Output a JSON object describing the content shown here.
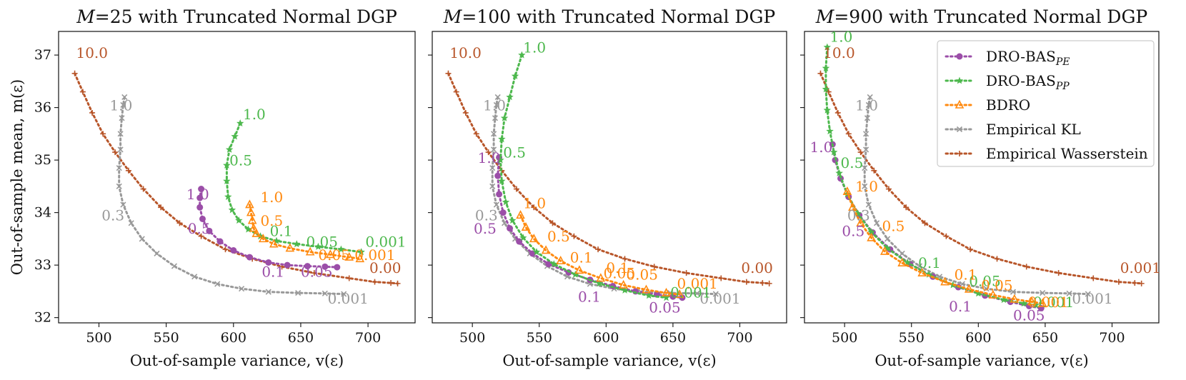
{
  "colors": {
    "DRO-BAS_PE": "#9b4ea8",
    "DRO-BAS_PP": "#4db84d",
    "BDRO": "#ff8a10",
    "Empirical KL": "#999999",
    "Empirical Wasserstein": "#b8562a"
  },
  "legend": [
    {
      "key": "DRO-BAS_PE",
      "label": "DRO-BAS",
      "sub": "PE",
      "marker": "circle"
    },
    {
      "key": "DRO-BAS_PP",
      "label": "DRO-BAS",
      "sub": "PP",
      "marker": "star"
    },
    {
      "key": "BDRO",
      "label": "BDRO",
      "sub": "",
      "marker": "triangle"
    },
    {
      "key": "Empirical KL",
      "label": "Empirical KL",
      "sub": "",
      "marker": "x"
    },
    {
      "key": "Empirical Wasserstein",
      "label": "Empirical Wasserstein",
      "sub": "",
      "marker": "plus"
    }
  ],
  "chart_data": [
    {
      "type": "line",
      "title_math": "M",
      "title_rest": "=25 with Truncated Normal DGP",
      "xlabel": "Out-of-sample variance, v(ε)",
      "ylabel": "Out-of-sample mean, m(ε)",
      "xlim": [
        470,
        735
      ],
      "ylim": [
        31.9,
        37.45
      ],
      "xticks": [
        500,
        550,
        600,
        650,
        700
      ],
      "yticks": [
        32,
        33,
        34,
        35,
        36,
        37
      ],
      "series": [
        {
          "name": "Empirical Wasserstein",
          "x": [
            482,
            488,
            495,
            503,
            512,
            522,
            533,
            546,
            560,
            576,
            594,
            614,
            636,
            660,
            686,
            705,
            717,
            722
          ],
          "y": [
            36.65,
            36.3,
            35.9,
            35.5,
            35.15,
            34.8,
            34.45,
            34.1,
            33.8,
            33.55,
            33.3,
            33.12,
            32.97,
            32.85,
            32.75,
            32.68,
            32.66,
            32.65
          ]
        },
        {
          "name": "Empirical KL",
          "x": [
            519,
            518,
            517,
            516,
            516,
            515,
            515,
            518,
            524,
            532,
            543,
            556,
            571,
            588,
            606,
            626,
            648,
            668,
            682
          ],
          "y": [
            36.2,
            36.05,
            35.8,
            35.5,
            35.2,
            34.85,
            34.5,
            34.15,
            33.8,
            33.5,
            33.22,
            32.98,
            32.78,
            32.64,
            32.55,
            32.49,
            32.47,
            32.46,
            32.45
          ]
        },
        {
          "name": "DRO-BAS_PE",
          "x": [
            576,
            575,
            575,
            577,
            582,
            590,
            600,
            612,
            626,
            640,
            655,
            668,
            677
          ],
          "y": [
            34.45,
            34.28,
            34.1,
            33.88,
            33.65,
            33.45,
            33.28,
            33.15,
            33.05,
            33.0,
            32.98,
            32.97,
            32.96
          ]
        },
        {
          "name": "DRO-BAS_PP",
          "x": [
            605,
            601,
            597,
            595,
            595,
            596,
            599,
            604,
            611,
            620,
            632,
            647,
            663,
            680,
            695
          ],
          "y": [
            35.7,
            35.45,
            35.2,
            34.9,
            34.6,
            34.3,
            34.05,
            33.85,
            33.68,
            33.55,
            33.46,
            33.4,
            33.35,
            33.3,
            33.25
          ]
        },
        {
          "name": "BDRO",
          "x": [
            612,
            613,
            614,
            615,
            617,
            622,
            630,
            642,
            657,
            672,
            686,
            694
          ],
          "y": [
            34.15,
            34.0,
            33.85,
            33.7,
            33.6,
            33.5,
            33.4,
            33.32,
            33.25,
            33.2,
            33.15,
            33.12
          ]
        }
      ],
      "annotations": [
        {
          "text": "10.0",
          "x": 483,
          "y": 36.95,
          "series": "Empirical Wasserstein"
        },
        {
          "text": "1.0",
          "x": 508,
          "y": 35.95,
          "series": "Empirical KL"
        },
        {
          "text": "0.3",
          "x": 502,
          "y": 33.85,
          "series": "Empirical KL"
        },
        {
          "text": "0.001",
          "x": 670,
          "y": 32.27,
          "series": "Empirical KL"
        },
        {
          "text": "0.00",
          "x": 701,
          "y": 32.85,
          "series": "Empirical Wasserstein"
        },
        {
          "text": "1.0",
          "x": 565,
          "y": 34.25,
          "series": "DRO-BAS_PE"
        },
        {
          "text": "0.5",
          "x": 566,
          "y": 33.6,
          "series": "DRO-BAS_PE"
        },
        {
          "text": "0.1",
          "x": 621,
          "y": 32.78,
          "series": "DRO-BAS_PE"
        },
        {
          "text": "0.05",
          "x": 650,
          "y": 32.78,
          "series": "DRO-BAS_PE"
        },
        {
          "text": "1.0",
          "x": 607,
          "y": 35.78,
          "series": "DRO-BAS_PP"
        },
        {
          "text": "0.5",
          "x": 597,
          "y": 34.9,
          "series": "DRO-BAS_PP"
        },
        {
          "text": "0.1",
          "x": 627,
          "y": 33.55,
          "series": "DRO-BAS_PP"
        },
        {
          "text": "0.05",
          "x": 654,
          "y": 33.35,
          "series": "DRO-BAS_PP"
        },
        {
          "text": "0.001",
          "x": 698,
          "y": 33.35,
          "series": "DRO-BAS_PP"
        },
        {
          "text": "1.0",
          "x": 620,
          "y": 34.2,
          "series": "BDRO"
        },
        {
          "text": "0.5",
          "x": 620,
          "y": 33.75,
          "series": "BDRO"
        },
        {
          "text": "0.05",
          "x": 663,
          "y": 33.1,
          "series": "BDRO"
        },
        {
          "text": "0.001",
          "x": 690,
          "y": 33.1,
          "series": "BDRO"
        }
      ]
    },
    {
      "type": "line",
      "title_math": "M",
      "title_rest": "=100 with Truncated Normal DGP",
      "xlabel": "Out-of-sample variance, v(ε)",
      "ylabel": "",
      "xlim": [
        470,
        735
      ],
      "ylim": [
        31.9,
        37.45
      ],
      "xticks": [
        500,
        550,
        600,
        650,
        700
      ],
      "yticks": [
        32,
        33,
        34,
        35,
        36,
        37
      ],
      "series": [
        {
          "name": "Empirical Wasserstein",
          "x": [
            482,
            488,
            495,
            503,
            512,
            522,
            533,
            546,
            560,
            576,
            594,
            614,
            636,
            660,
            686,
            705,
            717,
            722
          ],
          "y": [
            36.65,
            36.3,
            35.9,
            35.5,
            35.15,
            34.8,
            34.45,
            34.1,
            33.8,
            33.55,
            33.3,
            33.12,
            32.97,
            32.85,
            32.75,
            32.68,
            32.66,
            32.65
          ]
        },
        {
          "name": "Empirical KL",
          "x": [
            519,
            518,
            517,
            516,
            516,
            515,
            515,
            518,
            524,
            532,
            543,
            556,
            571,
            588,
            606,
            626,
            648,
            668,
            682
          ],
          "y": [
            36.2,
            36.05,
            35.8,
            35.5,
            35.2,
            34.85,
            34.5,
            34.15,
            33.8,
            33.5,
            33.22,
            32.98,
            32.78,
            32.64,
            32.55,
            32.49,
            32.47,
            32.46,
            32.45
          ]
        },
        {
          "name": "DRO-BAS_PE",
          "x": [
            520,
            519,
            520,
            523,
            528,
            535,
            545,
            557,
            572,
            588,
            605,
            622,
            638,
            650,
            657
          ],
          "y": [
            35.05,
            34.7,
            34.35,
            34.0,
            33.7,
            33.45,
            33.22,
            33.02,
            32.86,
            32.72,
            32.6,
            32.5,
            32.44,
            32.4,
            32.38
          ]
        },
        {
          "name": "DRO-BAS_PP",
          "x": [
            537,
            532,
            528,
            524,
            522,
            521,
            522,
            525,
            530,
            538,
            548,
            561,
            577,
            595,
            614,
            632,
            645
          ],
          "y": [
            37.0,
            36.6,
            36.2,
            35.8,
            35.4,
            35.0,
            34.6,
            34.2,
            33.85,
            33.52,
            33.25,
            33.02,
            32.82,
            32.65,
            32.52,
            32.42,
            32.38
          ]
        },
        {
          "name": "BDRO",
          "x": [
            536,
            540,
            546,
            555,
            566,
            580,
            596,
            613,
            630,
            645,
            655
          ],
          "y": [
            33.95,
            33.72,
            33.5,
            33.28,
            33.08,
            32.9,
            32.75,
            32.62,
            32.53,
            32.47,
            32.44
          ]
        }
      ],
      "annotations": [
        {
          "text": "10.0",
          "x": 483,
          "y": 36.95,
          "series": "Empirical Wasserstein"
        },
        {
          "text": "1.0",
          "x": 508,
          "y": 35.95,
          "series": "Empirical KL"
        },
        {
          "text": "0.3",
          "x": 502,
          "y": 33.85,
          "series": "Empirical KL"
        },
        {
          "text": "0.001",
          "x": 670,
          "y": 32.27,
          "series": "Empirical KL"
        },
        {
          "text": "0.00",
          "x": 701,
          "y": 32.85,
          "series": "Empirical Wasserstein"
        },
        {
          "text": "1.0",
          "x": 504,
          "y": 34.95,
          "series": "DRO-BAS_PE"
        },
        {
          "text": "0.5",
          "x": 501,
          "y": 33.6,
          "series": "DRO-BAS_PE"
        },
        {
          "text": "0.1",
          "x": 579,
          "y": 32.3,
          "series": "DRO-BAS_PE"
        },
        {
          "text": "0.05",
          "x": 632,
          "y": 32.1,
          "series": "DRO-BAS_PE"
        },
        {
          "text": "1.0",
          "x": 538,
          "y": 37.05,
          "series": "DRO-BAS_PP"
        },
        {
          "text": "0.5",
          "x": 523,
          "y": 35.05,
          "series": "DRO-BAS_PP"
        },
        {
          "text": "1.0",
          "x": 538,
          "y": 34.08,
          "series": "BDRO"
        },
        {
          "text": "0.5",
          "x": 556,
          "y": 33.45,
          "series": "BDRO"
        },
        {
          "text": "0.1",
          "x": 573,
          "y": 33.05,
          "series": "BDRO"
        },
        {
          "text": "0.05",
          "x": 598,
          "y": 32.75,
          "series": "BDRO"
        },
        {
          "text": "0.1",
          "x": 600,
          "y": 32.85,
          "series": "BDRO"
        },
        {
          "text": "0.05",
          "x": 615,
          "y": 32.72,
          "series": "BDRO"
        },
        {
          "text": "0.001",
          "x": 653,
          "y": 32.55,
          "series": "BDRO"
        },
        {
          "text": "0.001",
          "x": 648,
          "y": 32.38,
          "series": "DRO-BAS_PP"
        }
      ]
    },
    {
      "type": "line",
      "title_math": "M",
      "title_rest": "=900 with Truncated Normal DGP",
      "xlabel": "Out-of-sample variance, v(ε)",
      "ylabel": "",
      "xlim": [
        470,
        735
      ],
      "ylim": [
        31.9,
        37.45
      ],
      "xticks": [
        500,
        550,
        600,
        650,
        700
      ],
      "yticks": [
        32,
        33,
        34,
        35,
        36,
        37
      ],
      "series": [
        {
          "name": "Empirical Wasserstein",
          "x": [
            482,
            488,
            495,
            503,
            512,
            522,
            533,
            546,
            560,
            576,
            594,
            614,
            636,
            660,
            686,
            705,
            717,
            722
          ],
          "y": [
            36.65,
            36.3,
            35.9,
            35.5,
            35.15,
            34.8,
            34.45,
            34.1,
            33.8,
            33.55,
            33.3,
            33.12,
            32.97,
            32.85,
            32.75,
            32.68,
            32.66,
            32.65
          ]
        },
        {
          "name": "Empirical KL",
          "x": [
            519,
            518,
            517,
            516,
            516,
            515,
            515,
            518,
            524,
            532,
            543,
            556,
            571,
            588,
            606,
            626,
            648,
            668,
            682
          ],
          "y": [
            36.2,
            36.05,
            35.8,
            35.5,
            35.2,
            34.85,
            34.5,
            34.15,
            33.8,
            33.5,
            33.22,
            32.98,
            32.78,
            32.64,
            32.55,
            32.49,
            32.47,
            32.46,
            32.45
          ]
        },
        {
          "name": "DRO-BAS_PE",
          "x": [
            491,
            493,
            497,
            503,
            511,
            521,
            534,
            549,
            566,
            585,
            605,
            624,
            638,
            647
          ],
          "y": [
            35.3,
            35.0,
            34.65,
            34.3,
            33.95,
            33.62,
            33.3,
            33.02,
            32.78,
            32.58,
            32.42,
            32.3,
            32.22,
            32.18
          ]
        },
        {
          "name": "DRO-BAS_PP",
          "x": [
            487,
            486,
            486,
            487,
            489,
            492,
            496,
            502,
            510,
            520,
            532,
            547,
            563,
            581,
            600,
            619,
            634,
            643
          ],
          "y": [
            37.15,
            36.75,
            36.35,
            35.95,
            35.55,
            35.15,
            34.75,
            34.35,
            33.98,
            33.63,
            33.32,
            33.05,
            32.82,
            32.62,
            32.46,
            32.34,
            32.27,
            32.24
          ]
        },
        {
          "name": "BDRO",
          "x": [
            502,
            506,
            512,
            520,
            530,
            543,
            558,
            575,
            593,
            611,
            627,
            640,
            648
          ],
          "y": [
            34.4,
            34.1,
            33.8,
            33.52,
            33.26,
            33.04,
            32.85,
            32.68,
            32.54,
            32.43,
            32.35,
            32.3,
            32.27
          ]
        }
      ],
      "annotations": [
        {
          "text": "10.0",
          "x": 484,
          "y": 36.95,
          "series": "Empirical Wasserstein"
        },
        {
          "text": "1.0",
          "x": 508,
          "y": 35.95,
          "series": "Empirical KL"
        },
        {
          "text": "0.3",
          "x": 502,
          "y": 33.85,
          "series": "Empirical KL"
        },
        {
          "text": "0.001",
          "x": 670,
          "y": 32.27,
          "series": "Empirical KL"
        },
        {
          "text": "0.001",
          "x": 706,
          "y": 32.85,
          "series": "Empirical Wasserstein"
        },
        {
          "text": "1.0",
          "x": 474,
          "y": 35.15,
          "series": "DRO-BAS_PE"
        },
        {
          "text": "0.5",
          "x": 498,
          "y": 33.55,
          "series": "DRO-BAS_PE"
        },
        {
          "text": "0.1",
          "x": 578,
          "y": 32.12,
          "series": "DRO-BAS_PE"
        },
        {
          "text": "0.05",
          "x": 626,
          "y": 31.95,
          "series": "DRO-BAS_PE"
        },
        {
          "text": "1.0",
          "x": 489,
          "y": 37.25,
          "series": "DRO-BAS_PP"
        },
        {
          "text": "0.5",
          "x": 497,
          "y": 34.85,
          "series": "DRO-BAS_PP"
        },
        {
          "text": "0.1",
          "x": 555,
          "y": 32.95,
          "series": "DRO-BAS_PP"
        },
        {
          "text": "0.05",
          "x": 593,
          "y": 32.6,
          "series": "DRO-BAS_PP"
        },
        {
          "text": "0.001",
          "x": 641,
          "y": 32.2,
          "series": "DRO-BAS_PP"
        },
        {
          "text": "1.0",
          "x": 508,
          "y": 34.4,
          "series": "BDRO"
        },
        {
          "text": "0.5",
          "x": 528,
          "y": 33.65,
          "series": "BDRO"
        },
        {
          "text": "0.1",
          "x": 582,
          "y": 32.72,
          "series": "BDRO"
        },
        {
          "text": "0.05",
          "x": 602,
          "y": 32.52,
          "series": "BDRO"
        },
        {
          "text": "0.001",
          "x": 637,
          "y": 32.2,
          "series": "BDRO"
        }
      ]
    }
  ]
}
